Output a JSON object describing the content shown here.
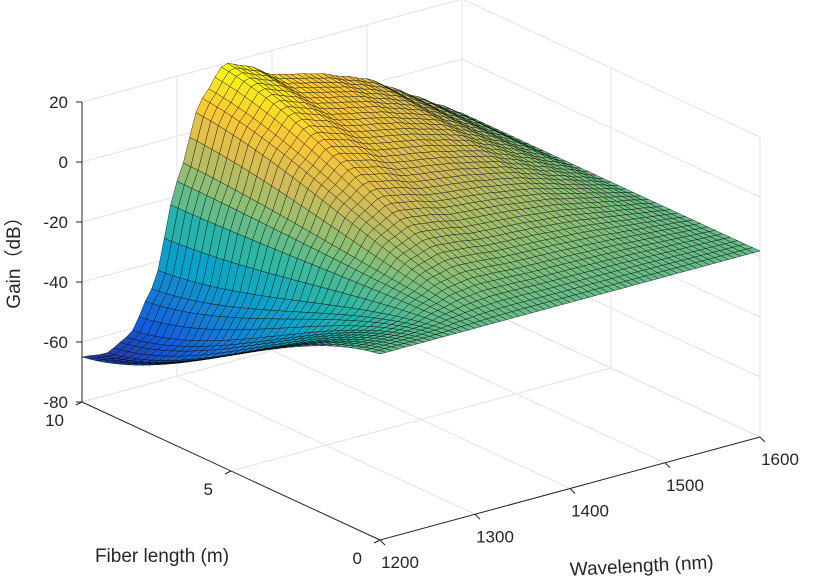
{
  "chart_data": {
    "type": "surface",
    "title": "",
    "xlabel": "Wavelength (nm)",
    "ylabel": "Fiber length (m)",
    "zlabel": "Gain（dB）",
    "xlim": [
      1200,
      1600
    ],
    "ylim": [
      0,
      10
    ],
    "zlim": [
      -80,
      20
    ],
    "x_ticks": [
      "1200",
      "1300",
      "1400",
      "1500",
      "1600"
    ],
    "y_ticks": [
      "0",
      "5",
      "10"
    ],
    "z_ticks": [
      "-80",
      "-60",
      "-40",
      "-20",
      "0",
      "20"
    ],
    "grid": true,
    "colormap": "parula",
    "colormap_colors": [
      "#352a87",
      "#0f5cdd",
      "#1481d6",
      "#06a4ca",
      "#2eb7a4",
      "#87bf77",
      "#d1bb59",
      "#fec832",
      "#f9fb0e"
    ],
    "surface_edge_color": "#000000",
    "wavelength_nm": [
      1200,
      1225,
      1250,
      1275,
      1300,
      1325,
      1350,
      1375,
      1400,
      1425,
      1450,
      1475,
      1500,
      1525,
      1550,
      1575,
      1600
    ],
    "gain_at_max_length_db": [
      -65,
      -66,
      -62,
      -48,
      -15,
      10,
      20,
      17,
      12,
      10,
      8,
      5,
      2,
      -3,
      -8,
      -13,
      -18
    ],
    "gain_at_zero_length_db": [
      -18,
      -18,
      -18,
      -18,
      -18,
      -18,
      -18,
      -18,
      -18,
      -18,
      -18,
      -18,
      -18,
      -18,
      -18,
      -18,
      -18
    ]
  }
}
